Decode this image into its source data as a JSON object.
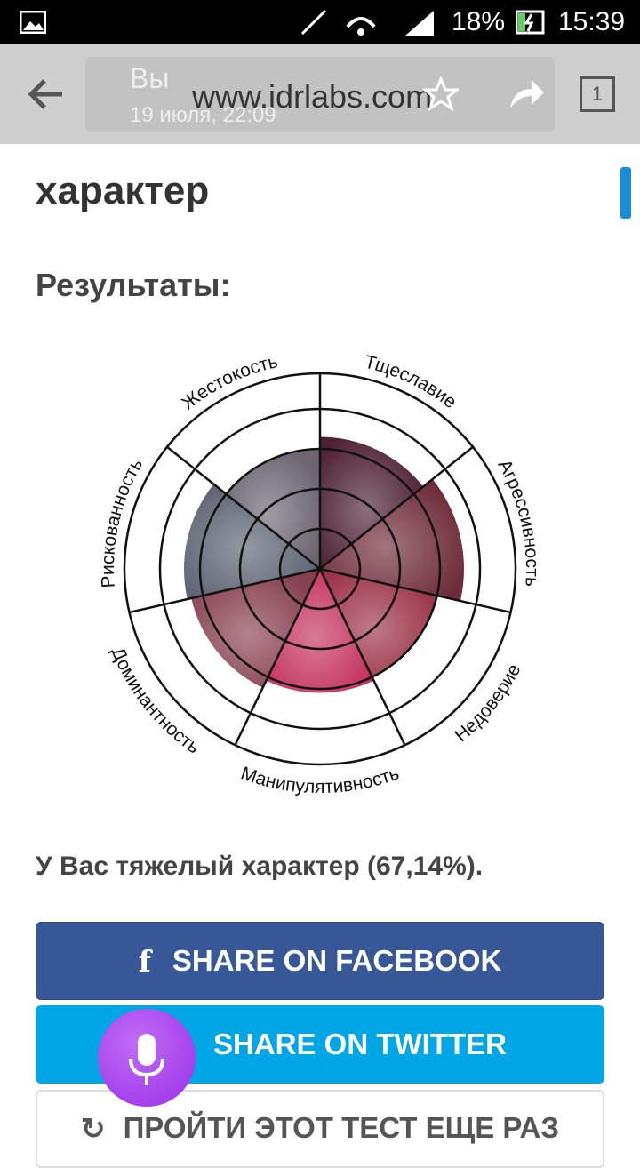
{
  "status_bar": {
    "battery": "18%",
    "time": "15:39"
  },
  "toolbar": {
    "title": "Вы",
    "url": "www.idrlabs.com",
    "date": "19 июля, 22:09",
    "tabs": "1"
  },
  "page": {
    "heading": "характер",
    "results_label": "Результаты:",
    "result_text": "У Вас тяжелый характер (67,14%).",
    "buttons": [
      "SHARE ON FACEBOOK",
      "SHARE ON TWITTER",
      "ПРОЙТИ ЭТОТ ТЕСТ ЕЩЕ РАЗ"
    ]
  },
  "chart_data": {
    "type": "polar",
    "categories": [
      "Тщеславие",
      "Агрессивность",
      "Недоверие",
      "Манипулятивность",
      "Доминантность",
      "Рискованность",
      "Жестокость"
    ],
    "values": [
      3.3,
      3.6,
      3.0,
      3.1,
      3.3,
      3.4,
      3.0
    ],
    "colors": [
      "#4e2235",
      "#6e2c3a",
      "#9c3349",
      "#c4335e",
      "#87404f",
      "#5b6272",
      "#6d6672"
    ],
    "rlim": [
      0,
      4
    ],
    "rticks": [
      1,
      2,
      3,
      4
    ]
  }
}
